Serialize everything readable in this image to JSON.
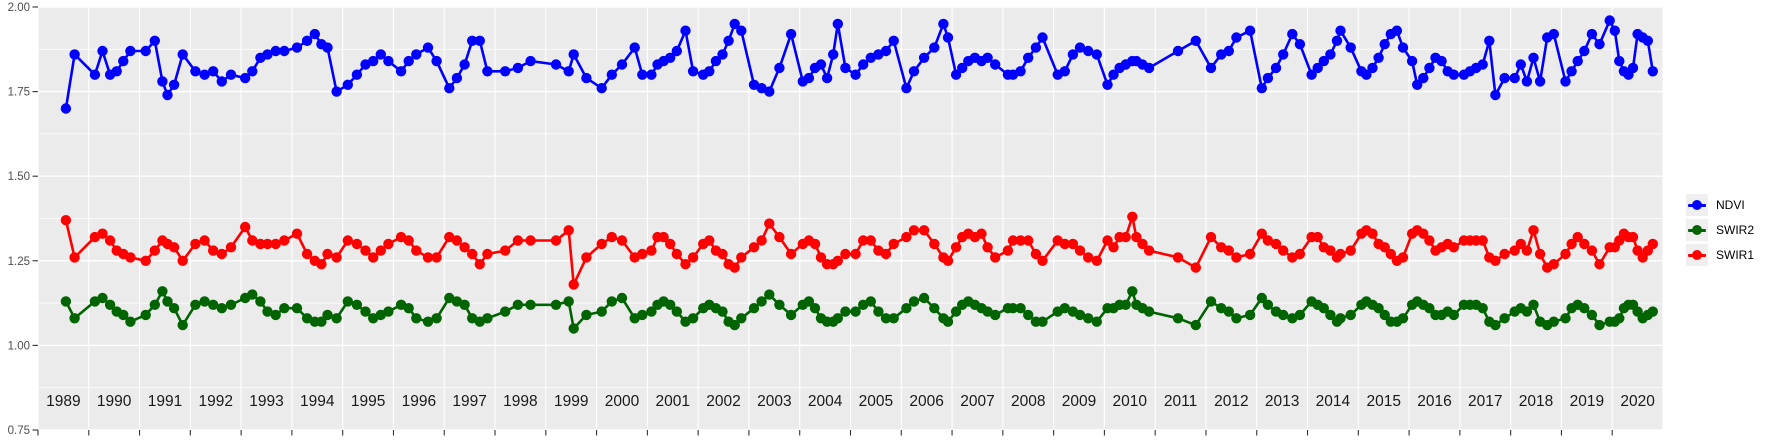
{
  "window": {
    "background": "#FFFFFF"
  },
  "chart_data": {
    "type": "line",
    "title": "",
    "xlabel": "",
    "ylabel": "",
    "grid": {
      "panel_background": "#EBEBEB",
      "major_gridline_color": "#FFFFFF",
      "minor_gridline_color": "#FFFFFF",
      "tick_color": "#333333",
      "y_label_color": "#4D4D4D",
      "year_label_color": "#1A1A1A"
    },
    "x_axis": {
      "domain_start": 1989,
      "domain_end": 2021,
      "year_labels": [
        "1989",
        "1990",
        "1991",
        "1992",
        "1993",
        "1994",
        "1995",
        "1996",
        "1997",
        "1998",
        "1999",
        "2000",
        "2001",
        "2002",
        "2003",
        "2004",
        "2005",
        "2006",
        "2007",
        "2008",
        "2009",
        "2010",
        "2011",
        "2012",
        "2013",
        "2014",
        "2015",
        "2016",
        "2017",
        "2018",
        "2019",
        "2020"
      ]
    },
    "y_axis": {
      "min": 0.75,
      "max": 2.0,
      "ticks": [
        0.75,
        1.0,
        1.25,
        1.5,
        1.75,
        2.0
      ],
      "tick_labels": [
        "0.75",
        "1.00",
        "1.25",
        "1.50",
        "1.75",
        "2.00"
      ],
      "minor_ticks": [
        0.875,
        1.125,
        1.375,
        1.625,
        1.875
      ]
    },
    "legend": {
      "position": "right"
    },
    "x": [
      1989.55,
      1989.72,
      1990.12,
      1990.27,
      1990.42,
      1990.55,
      1990.68,
      1990.82,
      1991.12,
      1991.3,
      1991.45,
      1991.55,
      1991.68,
      1991.85,
      1992.1,
      1992.28,
      1992.45,
      1992.62,
      1992.8,
      1993.08,
      1993.22,
      1993.38,
      1993.52,
      1993.68,
      1993.85,
      1994.1,
      1994.3,
      1994.45,
      1994.58,
      1994.7,
      1994.88,
      1995.1,
      1995.28,
      1995.45,
      1995.6,
      1995.75,
      1995.9,
      1996.15,
      1996.3,
      1996.45,
      1996.68,
      1996.85,
      1997.1,
      1997.25,
      1997.4,
      1997.55,
      1997.7,
      1997.85,
      1998.2,
      1998.45,
      1998.7,
      1999.2,
      1999.45,
      1999.55,
      1999.8,
      2000.1,
      2000.3,
      2000.5,
      2000.75,
      2000.9,
      2001.08,
      2001.2,
      2001.32,
      2001.45,
      2001.58,
      2001.75,
      2001.9,
      2002.1,
      2002.22,
      2002.35,
      2002.48,
      2002.6,
      2002.72,
      2002.85,
      2003.1,
      2003.25,
      2003.4,
      2003.6,
      2003.83,
      2004.06,
      2004.18,
      2004.3,
      2004.42,
      2004.54,
      2004.66,
      2004.75,
      2004.9,
      2005.1,
      2005.25,
      2005.4,
      2005.55,
      2005.7,
      2005.85,
      2006.1,
      2006.25,
      2006.45,
      2006.65,
      2006.83,
      2006.92,
      2007.08,
      2007.2,
      2007.32,
      2007.45,
      2007.58,
      2007.7,
      2007.85,
      2008.1,
      2008.2,
      2008.35,
      2008.5,
      2008.65,
      2008.78,
      2009.08,
      2009.22,
      2009.38,
      2009.52,
      2009.68,
      2009.85,
      2010.06,
      2010.18,
      2010.3,
      2010.42,
      2010.55,
      2010.63,
      2010.75,
      2010.88,
      2011.45,
      2011.8,
      2012.1,
      2012.3,
      2012.45,
      2012.6,
      2012.87,
      2013.1,
      2013.22,
      2013.38,
      2013.52,
      2013.7,
      2013.85,
      2014.08,
      2014.2,
      2014.32,
      2014.45,
      2014.58,
      2014.65,
      2014.85,
      2015.06,
      2015.16,
      2015.28,
      2015.4,
      2015.52,
      2015.64,
      2015.76,
      2015.88,
      2016.06,
      2016.16,
      2016.28,
      2016.4,
      2016.52,
      2016.64,
      2016.76,
      2016.88,
      2017.08,
      2017.2,
      2017.32,
      2017.45,
      2017.58,
      2017.7,
      2017.88,
      2018.08,
      2018.2,
      2018.32,
      2018.45,
      2018.58,
      2018.72,
      2018.85,
      2019.08,
      2019.2,
      2019.32,
      2019.45,
      2019.6,
      2019.75,
      2019.95,
      2020.05,
      2020.14,
      2020.23,
      2020.32,
      2020.41,
      2020.5,
      2020.6,
      2020.7,
      2020.8
    ],
    "series": [
      {
        "name": "NDVI",
        "color": "#0000FF",
        "values": [
          1.7,
          1.86,
          1.8,
          1.87,
          1.8,
          1.81,
          1.84,
          1.87,
          1.87,
          1.9,
          1.78,
          1.74,
          1.77,
          1.86,
          1.81,
          1.8,
          1.81,
          1.78,
          1.8,
          1.79,
          1.81,
          1.85,
          1.86,
          1.87,
          1.87,
          1.88,
          1.9,
          1.92,
          1.89,
          1.88,
          1.75,
          1.77,
          1.8,
          1.83,
          1.84,
          1.86,
          1.84,
          1.81,
          1.84,
          1.86,
          1.88,
          1.84,
          1.76,
          1.79,
          1.83,
          1.9,
          1.9,
          1.81,
          1.81,
          1.82,
          1.84,
          1.83,
          1.81,
          1.86,
          1.79,
          1.76,
          1.8,
          1.83,
          1.88,
          1.8,
          1.8,
          1.83,
          1.84,
          1.85,
          1.87,
          1.93,
          1.81,
          1.8,
          1.81,
          1.84,
          1.86,
          1.9,
          1.95,
          1.93,
          1.77,
          1.76,
          1.75,
          1.82,
          1.92,
          1.78,
          1.79,
          1.82,
          1.83,
          1.79,
          1.86,
          1.95,
          1.82,
          1.8,
          1.83,
          1.85,
          1.86,
          1.87,
          1.9,
          1.76,
          1.81,
          1.85,
          1.88,
          1.95,
          1.91,
          1.8,
          1.82,
          1.84,
          1.85,
          1.84,
          1.85,
          1.83,
          1.8,
          1.8,
          1.81,
          1.85,
          1.88,
          1.91,
          1.8,
          1.81,
          1.86,
          1.88,
          1.87,
          1.86,
          1.77,
          1.8,
          1.82,
          1.83,
          1.84,
          1.84,
          1.83,
          1.82,
          1.87,
          1.9,
          1.82,
          1.86,
          1.87,
          1.91,
          1.93,
          1.76,
          1.79,
          1.82,
          1.86,
          1.92,
          1.89,
          1.8,
          1.82,
          1.84,
          1.86,
          1.9,
          1.93,
          1.88,
          1.81,
          1.8,
          1.82,
          1.85,
          1.89,
          1.92,
          1.93,
          1.88,
          1.84,
          1.77,
          1.79,
          1.82,
          1.85,
          1.84,
          1.81,
          1.8,
          1.8,
          1.81,
          1.82,
          1.83,
          1.9,
          1.74,
          1.79,
          1.79,
          1.83,
          1.78,
          1.85,
          1.78,
          1.91,
          1.92,
          1.78,
          1.81,
          1.84,
          1.87,
          1.92,
          1.89,
          1.96,
          1.93,
          1.84,
          1.81,
          1.8,
          1.82,
          1.92,
          1.91,
          1.9,
          1.81
        ]
      },
      {
        "name": "SWIR2",
        "color": "#006400",
        "values": [
          1.13,
          1.08,
          1.13,
          1.14,
          1.12,
          1.1,
          1.09,
          1.07,
          1.09,
          1.12,
          1.16,
          1.13,
          1.11,
          1.06,
          1.12,
          1.13,
          1.12,
          1.11,
          1.12,
          1.14,
          1.15,
          1.13,
          1.1,
          1.09,
          1.11,
          1.11,
          1.08,
          1.07,
          1.07,
          1.09,
          1.08,
          1.13,
          1.12,
          1.1,
          1.08,
          1.09,
          1.1,
          1.12,
          1.11,
          1.08,
          1.07,
          1.08,
          1.14,
          1.13,
          1.12,
          1.08,
          1.07,
          1.08,
          1.1,
          1.12,
          1.12,
          1.12,
          1.13,
          1.05,
          1.09,
          1.1,
          1.13,
          1.14,
          1.08,
          1.09,
          1.1,
          1.12,
          1.13,
          1.12,
          1.1,
          1.07,
          1.08,
          1.11,
          1.12,
          1.11,
          1.1,
          1.07,
          1.06,
          1.08,
          1.11,
          1.13,
          1.15,
          1.12,
          1.09,
          1.12,
          1.13,
          1.11,
          1.08,
          1.07,
          1.07,
          1.08,
          1.1,
          1.1,
          1.12,
          1.13,
          1.1,
          1.08,
          1.08,
          1.11,
          1.13,
          1.14,
          1.11,
          1.08,
          1.07,
          1.1,
          1.12,
          1.13,
          1.12,
          1.11,
          1.1,
          1.09,
          1.11,
          1.11,
          1.11,
          1.09,
          1.07,
          1.07,
          1.1,
          1.11,
          1.1,
          1.09,
          1.08,
          1.07,
          1.11,
          1.11,
          1.12,
          1.12,
          1.16,
          1.12,
          1.11,
          1.1,
          1.08,
          1.06,
          1.13,
          1.11,
          1.1,
          1.08,
          1.09,
          1.14,
          1.12,
          1.1,
          1.09,
          1.08,
          1.09,
          1.13,
          1.12,
          1.11,
          1.09,
          1.07,
          1.08,
          1.09,
          1.12,
          1.13,
          1.12,
          1.11,
          1.09,
          1.07,
          1.07,
          1.08,
          1.12,
          1.13,
          1.12,
          1.11,
          1.09,
          1.09,
          1.1,
          1.09,
          1.12,
          1.12,
          1.12,
          1.11,
          1.07,
          1.06,
          1.08,
          1.1,
          1.11,
          1.1,
          1.12,
          1.07,
          1.06,
          1.07,
          1.08,
          1.11,
          1.12,
          1.11,
          1.09,
          1.06,
          1.07,
          1.07,
          1.08,
          1.11,
          1.12,
          1.12,
          1.1,
          1.08,
          1.09,
          1.1
        ]
      },
      {
        "name": "SWIR1",
        "color": "#FF0000",
        "values": [
          1.37,
          1.26,
          1.32,
          1.33,
          1.31,
          1.28,
          1.27,
          1.26,
          1.25,
          1.28,
          1.31,
          1.3,
          1.29,
          1.25,
          1.3,
          1.31,
          1.28,
          1.27,
          1.29,
          1.35,
          1.31,
          1.3,
          1.3,
          1.3,
          1.31,
          1.33,
          1.27,
          1.25,
          1.24,
          1.27,
          1.26,
          1.31,
          1.3,
          1.28,
          1.26,
          1.28,
          1.3,
          1.32,
          1.31,
          1.28,
          1.26,
          1.26,
          1.32,
          1.31,
          1.29,
          1.27,
          1.24,
          1.27,
          1.28,
          1.31,
          1.31,
          1.31,
          1.34,
          1.18,
          1.26,
          1.3,
          1.32,
          1.31,
          1.26,
          1.27,
          1.28,
          1.32,
          1.32,
          1.3,
          1.27,
          1.24,
          1.26,
          1.3,
          1.31,
          1.28,
          1.27,
          1.24,
          1.23,
          1.26,
          1.29,
          1.31,
          1.36,
          1.32,
          1.27,
          1.3,
          1.31,
          1.3,
          1.26,
          1.24,
          1.24,
          1.25,
          1.27,
          1.27,
          1.31,
          1.31,
          1.28,
          1.27,
          1.3,
          1.32,
          1.34,
          1.34,
          1.3,
          1.26,
          1.25,
          1.29,
          1.32,
          1.33,
          1.32,
          1.33,
          1.29,
          1.26,
          1.28,
          1.31,
          1.31,
          1.31,
          1.27,
          1.25,
          1.31,
          1.3,
          1.3,
          1.28,
          1.26,
          1.25,
          1.31,
          1.29,
          1.32,
          1.32,
          1.38,
          1.32,
          1.3,
          1.28,
          1.26,
          1.23,
          1.32,
          1.29,
          1.28,
          1.26,
          1.27,
          1.33,
          1.31,
          1.3,
          1.28,
          1.26,
          1.27,
          1.32,
          1.32,
          1.29,
          1.28,
          1.26,
          1.27,
          1.28,
          1.33,
          1.34,
          1.33,
          1.3,
          1.29,
          1.27,
          1.25,
          1.26,
          1.33,
          1.34,
          1.33,
          1.31,
          1.28,
          1.29,
          1.3,
          1.29,
          1.31,
          1.31,
          1.31,
          1.31,
          1.26,
          1.25,
          1.27,
          1.28,
          1.3,
          1.28,
          1.34,
          1.27,
          1.23,
          1.24,
          1.27,
          1.3,
          1.32,
          1.3,
          1.28,
          1.24,
          1.29,
          1.29,
          1.31,
          1.33,
          1.32,
          1.32,
          1.28,
          1.26,
          1.28,
          1.3
        ]
      }
    ]
  }
}
